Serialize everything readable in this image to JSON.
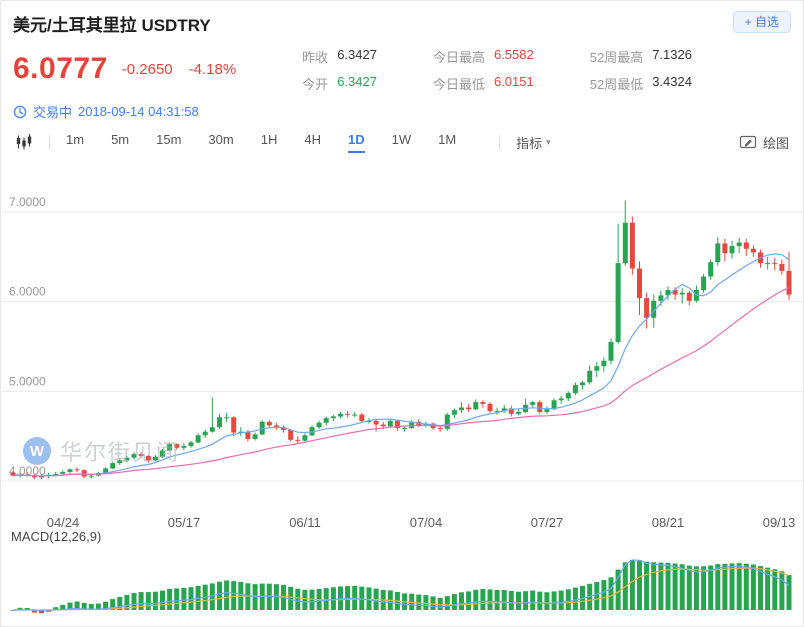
{
  "header": {
    "title": "美元/土耳其里拉 USDTRY",
    "fav_button": "+ 自选",
    "price": "6.0777",
    "change": "-0.2650",
    "change_pct": "-4.18%",
    "stats": [
      {
        "label": "昨收",
        "value": "6.3427",
        "color": "#333333"
      },
      {
        "label": "今开",
        "value": "6.3427",
        "color": "#26a450"
      },
      {
        "label": "今日最高",
        "value": "6.5582",
        "color": "#e2443c"
      },
      {
        "label": "今日最低",
        "value": "6.0151",
        "color": "#e2443c"
      },
      {
        "label": "52周最高",
        "value": "7.1326",
        "color": "#333333"
      },
      {
        "label": "52周最低",
        "value": "3.4324",
        "color": "#333333"
      }
    ],
    "status": "交易中",
    "datetime": "2018-09-14 04:31:58"
  },
  "toolbar": {
    "timeframes": [
      "1m",
      "5m",
      "15m",
      "30m",
      "1H",
      "4H",
      "1D",
      "1W",
      "1M"
    ],
    "active_timeframe": "1D",
    "indicator_label": "指标",
    "draw_label": "绘图"
  },
  "watermark": {
    "logo_letter": "W",
    "text": "华尔街见闻"
  },
  "chart_data": {
    "type": "candlestick",
    "title": "USDTRY 1D",
    "ylim": [
      3.75,
      7.35
    ],
    "y_ticks": [
      4,
      5,
      6,
      7
    ],
    "y_tick_labels": [
      "4.0000",
      "5.0000",
      "6.0000",
      "7.0000"
    ],
    "x_tick_labels": [
      "04/24",
      "05/17",
      "06/11",
      "07/04",
      "07/27",
      "08/21",
      "09/13"
    ],
    "colors": {
      "up": "#26a450",
      "down": "#e5493e"
    },
    "overlays": [
      {
        "name": "MA10",
        "period": 10,
        "color": "#6aa9f7"
      },
      {
        "name": "MA30",
        "period": 30,
        "color": "#ef6bb0"
      }
    ],
    "indicator": {
      "name": "MACD",
      "label": "MACD(12,26,9)",
      "params": [
        12,
        26,
        9
      ],
      "colors": {
        "hist_up": "#26a450",
        "hist_down": "#e5493e",
        "dif": "#6aa9f7",
        "dea": "#e8b43a"
      }
    },
    "columns": [
      "date",
      "open",
      "high",
      "low",
      "close"
    ],
    "candles": [
      [
        "04/13",
        4.09,
        4.11,
        4.05,
        4.06
      ],
      [
        "04/16",
        4.06,
        4.09,
        4.04,
        4.07
      ],
      [
        "04/17",
        4.07,
        4.1,
        4.05,
        4.06
      ],
      [
        "04/18",
        4.06,
        4.08,
        4.02,
        4.04
      ],
      [
        "04/19",
        4.04,
        4.07,
        4.02,
        4.05
      ],
      [
        "04/20",
        4.05,
        4.09,
        4.03,
        4.07
      ],
      [
        "04/23",
        4.07,
        4.1,
        4.05,
        4.08
      ],
      [
        "04/24",
        4.08,
        4.12,
        4.06,
        4.1
      ],
      [
        "04/25",
        4.1,
        4.14,
        4.08,
        4.13
      ],
      [
        "04/26",
        4.13,
        4.15,
        4.1,
        4.12
      ],
      [
        "04/27",
        4.12,
        4.13,
        4.03,
        4.05
      ],
      [
        "04/30",
        4.05,
        4.08,
        4.03,
        4.06
      ],
      [
        "05/01",
        4.06,
        4.1,
        4.05,
        4.09
      ],
      [
        "05/02",
        4.09,
        4.15,
        4.08,
        4.14
      ],
      [
        "05/03",
        4.14,
        4.21,
        4.13,
        4.2
      ],
      [
        "05/04",
        4.2,
        4.25,
        4.18,
        4.23
      ],
      [
        "05/07",
        4.23,
        4.28,
        4.21,
        4.26
      ],
      [
        "05/08",
        4.26,
        4.32,
        4.24,
        4.3
      ],
      [
        "05/09",
        4.3,
        4.32,
        4.26,
        4.28
      ],
      [
        "05/10",
        4.28,
        4.29,
        4.2,
        4.23
      ],
      [
        "05/11",
        4.23,
        4.29,
        4.22,
        4.27
      ],
      [
        "05/14",
        4.27,
        4.36,
        4.26,
        4.34
      ],
      [
        "05/15",
        4.34,
        4.43,
        4.33,
        4.41
      ],
      [
        "05/16",
        4.41,
        4.42,
        4.35,
        4.37
      ],
      [
        "05/17",
        4.37,
        4.42,
        4.34,
        4.39
      ],
      [
        "05/18",
        4.39,
        4.45,
        4.37,
        4.43
      ],
      [
        "05/21",
        4.43,
        4.53,
        4.42,
        4.51
      ],
      [
        "05/22",
        4.51,
        4.57,
        4.48,
        4.55
      ],
      [
        "05/23",
        4.55,
        4.93,
        4.54,
        4.6
      ],
      [
        "05/24",
        4.6,
        4.75,
        4.58,
        4.71
      ],
      [
        "05/25",
        4.71,
        4.76,
        4.66,
        4.71
      ],
      [
        "05/28",
        4.71,
        4.72,
        4.5,
        4.54
      ],
      [
        "05/29",
        4.54,
        4.6,
        4.5,
        4.55
      ],
      [
        "05/30",
        4.55,
        4.57,
        4.44,
        4.47
      ],
      [
        "05/31",
        4.47,
        4.54,
        4.45,
        4.52
      ],
      [
        "06/01",
        4.52,
        4.68,
        4.51,
        4.66
      ],
      [
        "06/04",
        4.66,
        4.68,
        4.59,
        4.62
      ],
      [
        "06/05",
        4.62,
        4.65,
        4.57,
        4.6
      ],
      [
        "06/06",
        4.6,
        4.62,
        4.54,
        4.57
      ],
      [
        "06/07",
        4.57,
        4.58,
        4.44,
        4.46
      ],
      [
        "06/08",
        4.46,
        4.5,
        4.42,
        4.45
      ],
      [
        "06/11",
        4.45,
        4.53,
        4.44,
        4.51
      ],
      [
        "06/12",
        4.51,
        4.62,
        4.5,
        4.6
      ],
      [
        "06/13",
        4.6,
        4.67,
        4.58,
        4.65
      ],
      [
        "06/14",
        4.65,
        4.72,
        4.62,
        4.7
      ],
      [
        "06/15",
        4.7,
        4.74,
        4.67,
        4.72
      ],
      [
        "06/18",
        4.72,
        4.77,
        4.7,
        4.75
      ],
      [
        "06/19",
        4.75,
        4.78,
        4.71,
        4.74
      ],
      [
        "06/20",
        4.74,
        4.77,
        4.71,
        4.74
      ],
      [
        "06/21",
        4.74,
        4.76,
        4.65,
        4.67
      ],
      [
        "06/22",
        4.67,
        4.7,
        4.64,
        4.67
      ],
      [
        "06/25",
        4.67,
        4.69,
        4.55,
        4.63
      ],
      [
        "06/26",
        4.63,
        4.66,
        4.58,
        4.61
      ],
      [
        "06/27",
        4.61,
        4.69,
        4.6,
        4.67
      ],
      [
        "06/28",
        4.67,
        4.68,
        4.56,
        4.59
      ],
      [
        "06/29",
        4.59,
        4.62,
        4.55,
        4.59
      ],
      [
        "07/02",
        4.59,
        4.68,
        4.58,
        4.66
      ],
      [
        "07/03",
        4.66,
        4.69,
        4.6,
        4.62
      ],
      [
        "07/04",
        4.62,
        4.66,
        4.6,
        4.64
      ],
      [
        "07/05",
        4.64,
        4.65,
        4.57,
        4.59
      ],
      [
        "07/06",
        4.59,
        4.62,
        4.55,
        4.58
      ],
      [
        "07/09",
        4.58,
        4.76,
        4.56,
        4.74
      ],
      [
        "07/10",
        4.74,
        4.81,
        4.7,
        4.79
      ],
      [
        "07/11",
        4.79,
        4.88,
        4.76,
        4.82
      ],
      [
        "07/12",
        4.82,
        4.86,
        4.77,
        4.8
      ],
      [
        "07/13",
        4.8,
        4.91,
        4.79,
        4.88
      ],
      [
        "07/16",
        4.88,
        4.9,
        4.82,
        4.86
      ],
      [
        "07/17",
        4.86,
        4.88,
        4.76,
        4.78
      ],
      [
        "07/18",
        4.78,
        4.82,
        4.74,
        4.78
      ],
      [
        "07/19",
        4.78,
        4.85,
        4.76,
        4.81
      ],
      [
        "07/20",
        4.81,
        4.84,
        4.72,
        4.75
      ],
      [
        "07/23",
        4.75,
        4.8,
        4.73,
        4.77
      ],
      [
        "07/24",
        4.77,
        4.92,
        4.76,
        4.85
      ],
      [
        "07/25",
        4.85,
        4.89,
        4.81,
        4.88
      ],
      [
        "07/26",
        4.88,
        4.9,
        4.75,
        4.77
      ],
      [
        "07/27",
        4.77,
        4.83,
        4.75,
        4.8
      ],
      [
        "07/30",
        4.8,
        4.92,
        4.79,
        4.9
      ],
      [
        "07/31",
        4.9,
        4.95,
        4.86,
        4.92
      ],
      [
        "08/01",
        4.92,
        5.0,
        4.89,
        4.98
      ],
      [
        "08/02",
        4.98,
        5.1,
        4.96,
        5.07
      ],
      [
        "08/03",
        5.07,
        5.12,
        5.02,
        5.1
      ],
      [
        "08/06",
        5.1,
        5.29,
        5.08,
        5.23
      ],
      [
        "08/07",
        5.23,
        5.33,
        5.16,
        5.28
      ],
      [
        "08/08",
        5.28,
        5.38,
        5.22,
        5.34
      ],
      [
        "08/09",
        5.34,
        5.59,
        5.3,
        5.55
      ],
      [
        "08/10",
        5.55,
        6.87,
        5.53,
        6.43
      ],
      [
        "08/13",
        6.43,
        7.13,
        6.4,
        6.88
      ],
      [
        "08/14",
        6.88,
        6.95,
        6.3,
        6.37
      ],
      [
        "08/15",
        6.37,
        6.45,
        5.85,
        6.04
      ],
      [
        "08/16",
        6.04,
        6.1,
        5.7,
        5.82
      ],
      [
        "08/17",
        5.82,
        6.08,
        5.71,
        6.01
      ],
      [
        "08/20",
        6.01,
        6.12,
        5.95,
        6.07
      ],
      [
        "08/21",
        6.07,
        6.17,
        6.02,
        6.13
      ],
      [
        "08/22",
        6.13,
        6.16,
        6.02,
        6.08
      ],
      [
        "08/23",
        6.08,
        6.15,
        5.98,
        6.1
      ],
      [
        "08/24",
        6.1,
        6.12,
        5.96,
        6.01
      ],
      [
        "08/27",
        6.01,
        6.18,
        5.99,
        6.13
      ],
      [
        "08/28",
        6.13,
        6.31,
        6.1,
        6.28
      ],
      [
        "08/29",
        6.28,
        6.47,
        6.24,
        6.44
      ],
      [
        "08/30",
        6.44,
        6.72,
        6.4,
        6.65
      ],
      [
        "08/31",
        6.65,
        6.7,
        6.45,
        6.54
      ],
      [
        "09/03",
        6.54,
        6.68,
        6.48,
        6.62
      ],
      [
        "09/04",
        6.62,
        6.71,
        6.54,
        6.66
      ],
      [
        "09/05",
        6.66,
        6.7,
        6.51,
        6.59
      ],
      [
        "09/06",
        6.59,
        6.63,
        6.5,
        6.55
      ],
      [
        "09/07",
        6.55,
        6.58,
        6.38,
        6.43
      ],
      [
        "09/10",
        6.43,
        6.5,
        6.36,
        6.43
      ],
      [
        "09/11",
        6.43,
        6.49,
        6.35,
        6.42
      ],
      [
        "09/12",
        6.42,
        6.47,
        6.3,
        6.3427
      ],
      [
        "09/13",
        6.3427,
        6.5582,
        6.0151,
        6.0777
      ]
    ]
  }
}
